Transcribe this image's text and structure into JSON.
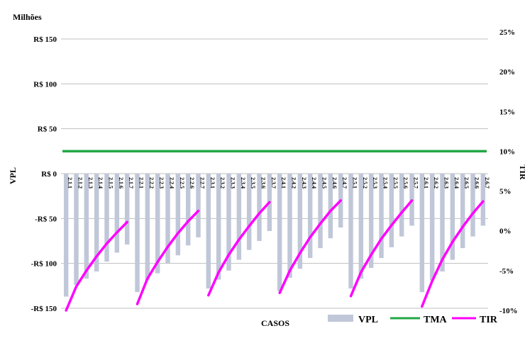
{
  "chart_data": {
    "type": "bar",
    "title": "",
    "unit_label": "Milhões",
    "xlabel": "CASOS",
    "ylabel": "VPL",
    "y2label": "TIR",
    "ylim": [
      -150,
      150
    ],
    "yticks": [
      -150,
      -100,
      -50,
      0,
      50,
      100,
      150
    ],
    "ytick_labels": [
      "-R$ 150",
      "-R$ 100",
      "-R$ 50",
      "R$ 0",
      "R$ 50",
      "R$ 100",
      "R$ 150"
    ],
    "y2lim": [
      -10,
      25
    ],
    "y2ticks": [
      -10,
      -5,
      0,
      5,
      10,
      15,
      20,
      25
    ],
    "y2tick_labels": [
      "-10%",
      "-5%",
      "0%",
      "5%",
      "10%",
      "15%",
      "20%",
      "25%"
    ],
    "grid": true,
    "legend_position": "bottom-right",
    "categories": [
      "2.1.1",
      "2.1.2",
      "2.1.3",
      "2.1.4",
      "2.1.5",
      "2.1.6",
      "2.1.7",
      "2.2.1",
      "2.2.2",
      "2.2.3",
      "2.2.4",
      "2.2.5",
      "2.2.6",
      "2.2.7",
      "2.3.1",
      "2.3.2",
      "2.3.3",
      "2.3.4",
      "2.3.5",
      "2.3.6",
      "2.3.7",
      "2.4.1",
      "2.4.2",
      "2.4.3",
      "2.4.4",
      "2.4.5",
      "2.4.6",
      "2.4.7",
      "2.5.1",
      "2.5.2",
      "2.5.3",
      "2.5.4",
      "2.5.5",
      "2.5.6",
      "2.5.7",
      "2.6.1",
      "2.6.2",
      "2.6.3",
      "2.6.4",
      "2.6.5",
      "2.6.6",
      "2.6.7"
    ],
    "series": [
      {
        "name": "VPL",
        "axis": "left",
        "type": "bar",
        "color": "#c0c7d8",
        "values": [
          -137,
          -124,
          -117,
          -109,
          -98,
          -88,
          -79,
          -132,
          -119,
          -111,
          -100,
          -91,
          -80,
          -71,
          -128,
          -118,
          -108,
          -96,
          -85,
          -75,
          -64,
          -131,
          -116,
          -106,
          -94,
          -83,
          -72,
          -60,
          -128,
          -117,
          -105,
          -94,
          -82,
          -70,
          -58,
          -132,
          -119,
          -109,
          -96,
          -83,
          -70,
          -58
        ]
      },
      {
        "name": "TMA",
        "axis": "right",
        "type": "line",
        "color": "#22a844",
        "values": [
          10,
          10,
          10,
          10,
          10,
          10,
          10,
          10,
          10,
          10,
          10,
          10,
          10,
          10,
          10,
          10,
          10,
          10,
          10,
          10,
          10,
          10,
          10,
          10,
          10,
          10,
          10,
          10,
          10,
          10,
          10,
          10,
          10,
          10,
          10,
          10,
          10,
          10,
          10,
          10,
          10,
          10
        ]
      },
      {
        "name": "TIR",
        "axis": "right",
        "type": "line",
        "color": "#ff00ff",
        "values": [
          -10,
          -7,
          -5,
          -3.2,
          -1.6,
          -0.2,
          1.1,
          -9.2,
          -6,
          -3.9,
          -2,
          -0.3,
          1.2,
          2.5,
          -8.1,
          -5.2,
          -3,
          -1.1,
          0.6,
          2.2,
          3.6,
          -7.8,
          -5,
          -2.8,
          -0.8,
          0.9,
          2.5,
          3.8,
          -8.2,
          -5.2,
          -3,
          -1,
          0.7,
          2.3,
          3.8,
          -9.5,
          -6.3,
          -3.6,
          -1.4,
          0.5,
          2.2,
          3.7
        ]
      }
    ]
  }
}
